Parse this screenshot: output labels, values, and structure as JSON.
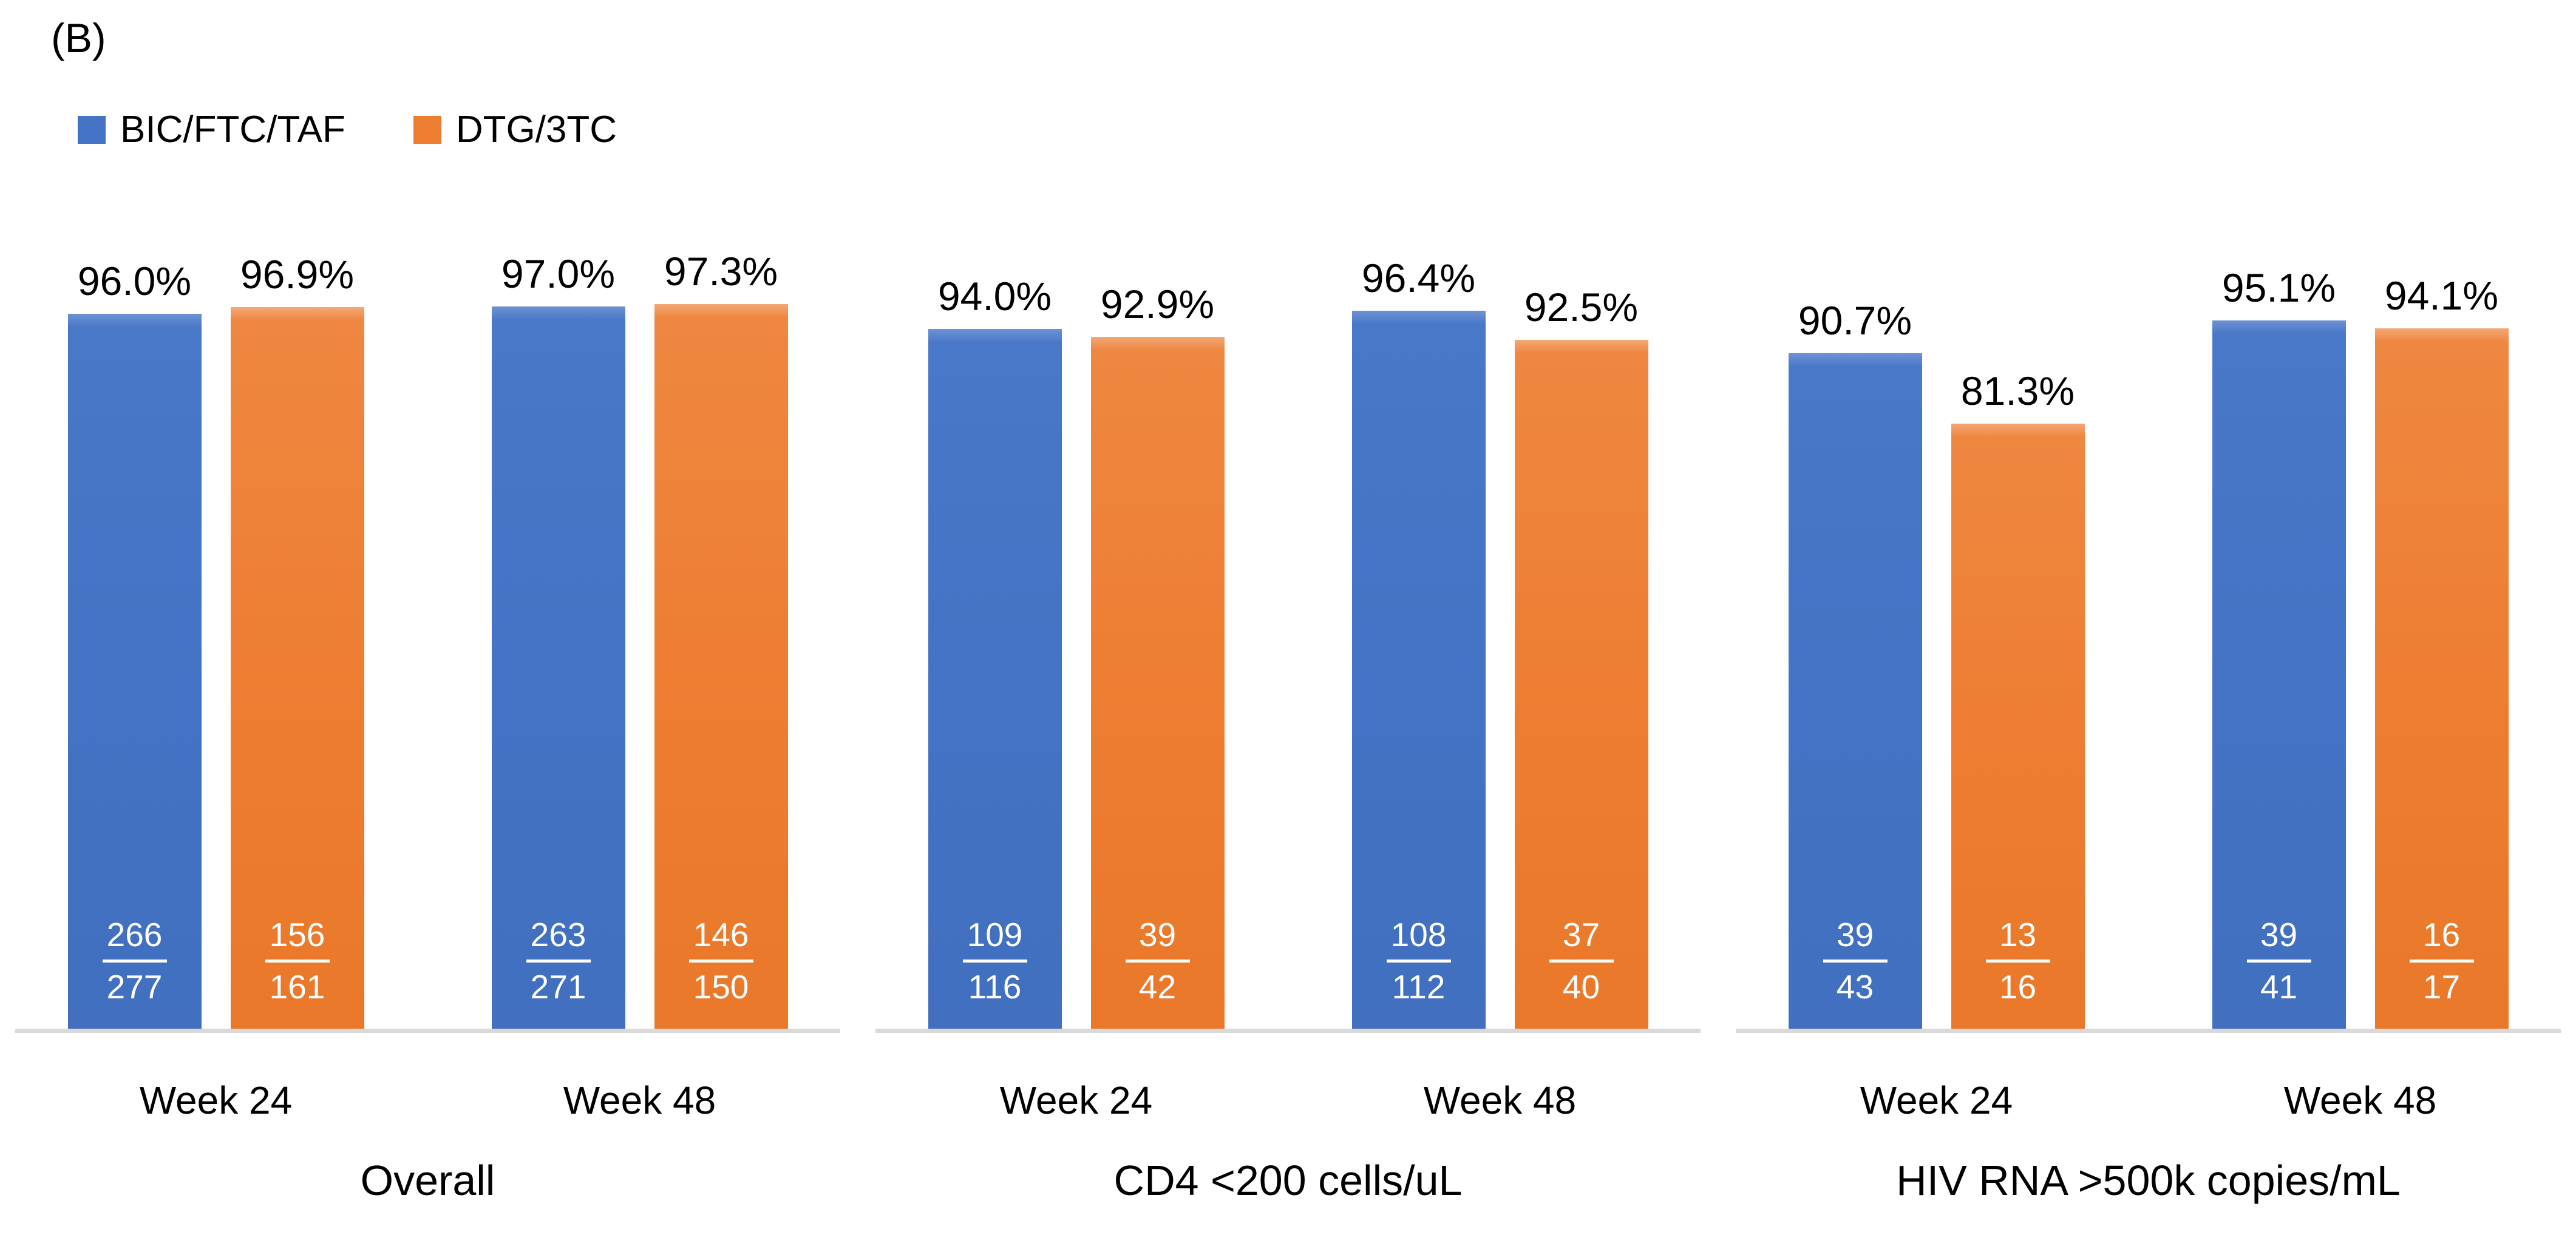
{
  "title": "(B)",
  "legend": [
    {
      "label": "BIC/FTC/TAF",
      "color": "#4472C4"
    },
    {
      "label": "DTG/3TC",
      "color": "#ED7D31"
    }
  ],
  "chart_data": {
    "type": "bar",
    "title": "(B)",
    "series_names": [
      "BIC/FTC/TAF",
      "DTG/3TC"
    ],
    "ylim": [
      0,
      100
    ],
    "y_unit": "percent",
    "grid": false,
    "y_axis_visible": false,
    "legend_position": "top-left",
    "colors": {
      "BIC/FTC/TAF": "#4472C4",
      "DTG/3TC": "#ED7D31"
    },
    "groups": [
      {
        "label": "Overall",
        "clusters": [
          {
            "label": "Week 24",
            "bars": [
              {
                "series": "BIC/FTC/TAF",
                "value": 96.0,
                "value_label": "96.0%",
                "numerator": "266",
                "denominator": "277"
              },
              {
                "series": "DTG/3TC",
                "value": 96.9,
                "value_label": "96.9%",
                "numerator": "156",
                "denominator": "161"
              }
            ]
          },
          {
            "label": "Week 48",
            "bars": [
              {
                "series": "BIC/FTC/TAF",
                "value": 97.0,
                "value_label": "97.0%",
                "numerator": "263",
                "denominator": "271"
              },
              {
                "series": "DTG/3TC",
                "value": 97.3,
                "value_label": "97.3%",
                "numerator": "146",
                "denominator": "150"
              }
            ]
          }
        ]
      },
      {
        "label": "CD4 <200 cells/uL",
        "clusters": [
          {
            "label": "Week 24",
            "bars": [
              {
                "series": "BIC/FTC/TAF",
                "value": 94.0,
                "value_label": "94.0%",
                "numerator": "109",
                "denominator": "116"
              },
              {
                "series": "DTG/3TC",
                "value": 92.9,
                "value_label": "92.9%",
                "numerator": "39",
                "denominator": "42"
              }
            ]
          },
          {
            "label": "Week 48",
            "bars": [
              {
                "series": "BIC/FTC/TAF",
                "value": 96.4,
                "value_label": "96.4%",
                "numerator": "108",
                "denominator": "112"
              },
              {
                "series": "DTG/3TC",
                "value": 92.5,
                "value_label": "92.5%",
                "numerator": "37",
                "denominator": "40"
              }
            ]
          }
        ]
      },
      {
        "label": "HIV RNA >500k copies/mL",
        "clusters": [
          {
            "label": "Week 24",
            "bars": [
              {
                "series": "BIC/FTC/TAF",
                "value": 90.7,
                "value_label": "90.7%",
                "numerator": "39",
                "denominator": "43"
              },
              {
                "series": "DTG/3TC",
                "value": 81.3,
                "value_label": "81.3%",
                "numerator": "13",
                "denominator": "16"
              }
            ]
          },
          {
            "label": "Week 48",
            "bars": [
              {
                "series": "BIC/FTC/TAF",
                "value": 95.1,
                "value_label": "95.1%",
                "numerator": "39",
                "denominator": "41"
              },
              {
                "series": "DTG/3TC",
                "value": 94.1,
                "value_label": "94.1%",
                "numerator": "16",
                "denominator": "17"
              }
            ]
          }
        ]
      }
    ]
  }
}
